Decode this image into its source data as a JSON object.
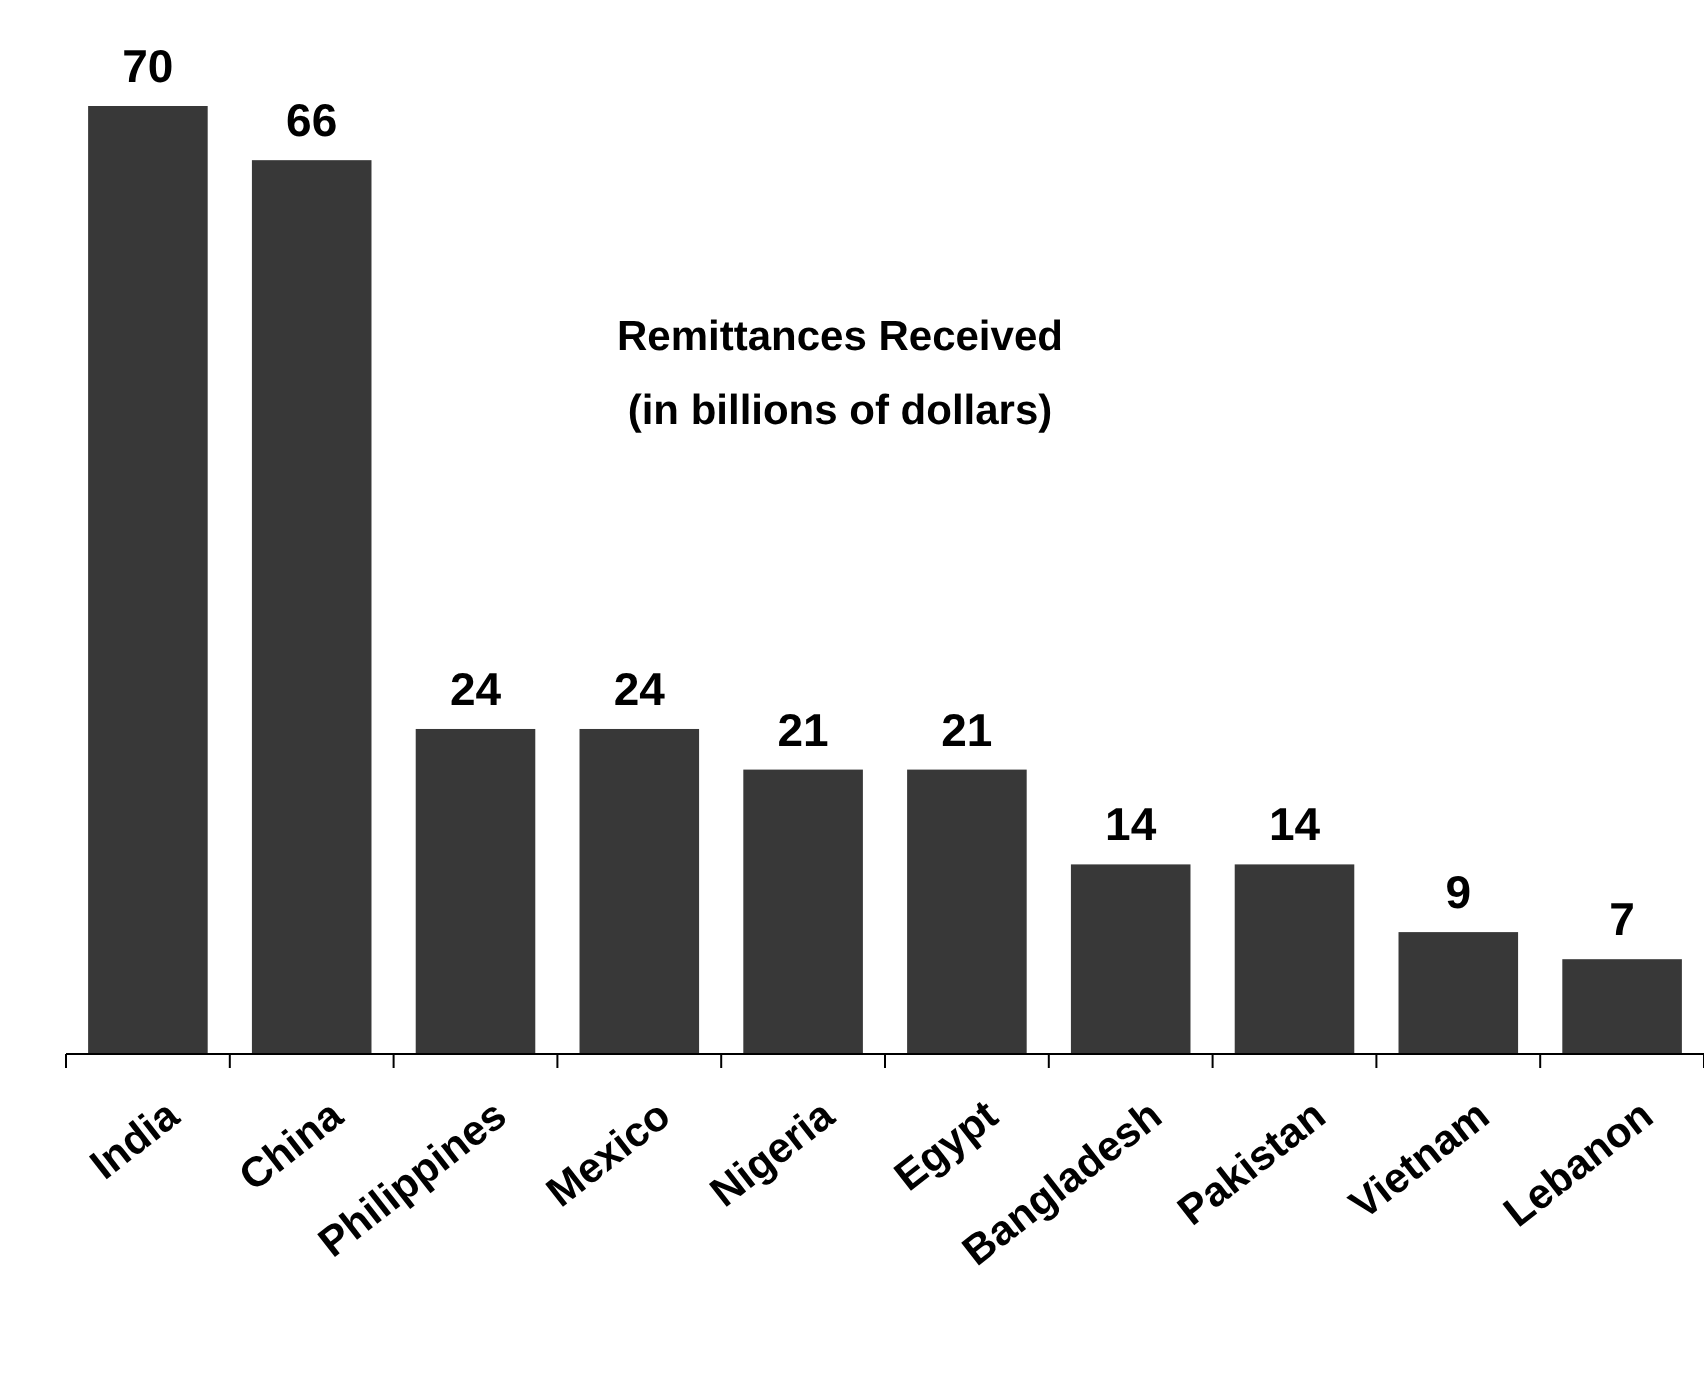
{
  "chart_data": {
    "type": "bar",
    "title": "Remittances Received",
    "subtitle": "(in billions of dollars)",
    "categories": [
      "India",
      "China",
      "Philippines",
      "Mexico",
      "Nigeria",
      "Egypt",
      "Bangladesh",
      "Pakistan",
      "Vietnam",
      "Lebanon"
    ],
    "values": [
      70,
      66,
      24,
      24,
      21,
      21,
      14,
      14,
      9,
      7
    ],
    "color": "#383838",
    "data_labels": true
  }
}
